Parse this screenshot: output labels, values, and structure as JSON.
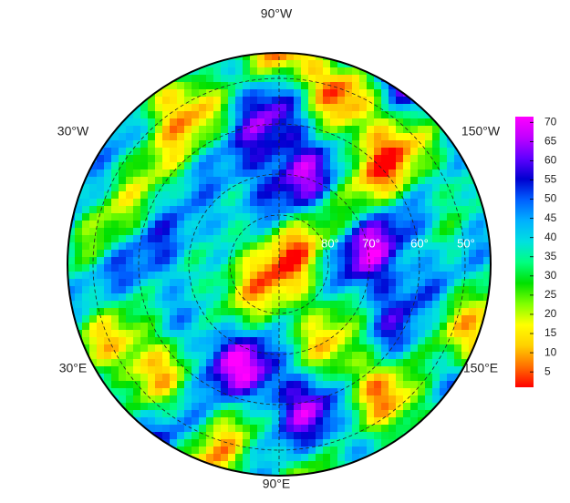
{
  "map": {
    "lon_labels": [
      "90°W",
      "30°W",
      "150°W",
      "30°E",
      "150°E",
      "90°E"
    ],
    "lat_labels": [
      "80°",
      "70°",
      "60°",
      "50°"
    ],
    "colorbar": {
      "lim": [
        1,
        71.5
      ],
      "ticks": [
        5,
        10,
        15,
        20,
        25,
        30,
        35,
        40,
        45,
        50,
        55,
        60,
        65,
        70
      ],
      "colormap": [
        "#ff0000",
        "#ff7000",
        "#ffd000",
        "#ffff00",
        "#80ff00",
        "#00e000",
        "#00ff80",
        "#00e0e0",
        "#00b0ff",
        "#0060ff",
        "#0000d0",
        "#6000ff",
        "#c000ff",
        "#ff00ff"
      ]
    }
  }
}
